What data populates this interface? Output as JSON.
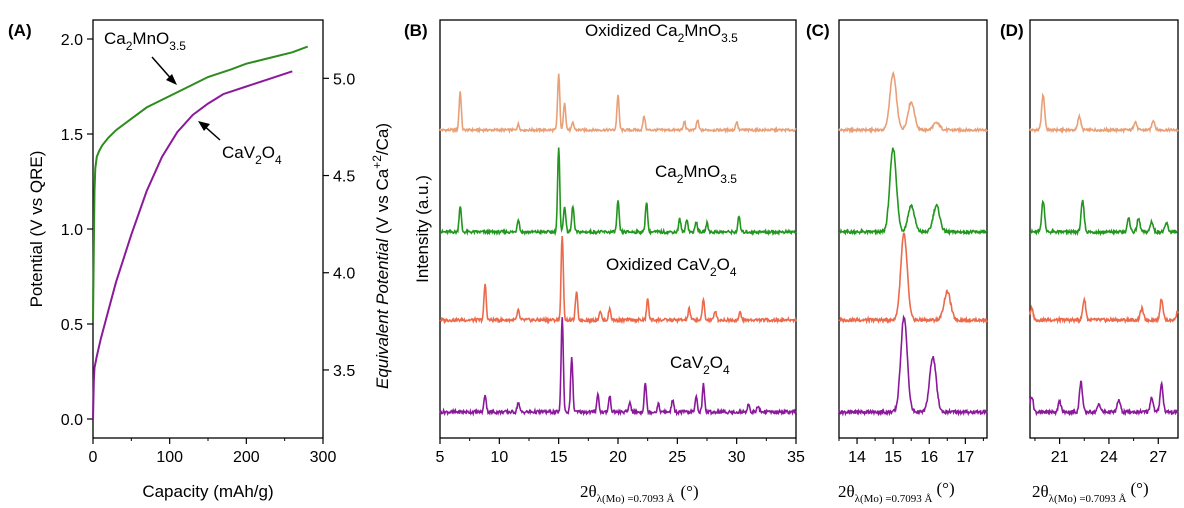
{
  "colors": {
    "green": "#2e8b1e",
    "purple": "#8b1a9b",
    "oxidized_mn": "#e8a078",
    "mn": "#22961e",
    "oxidized_v": "#ec6a4c",
    "v": "#8b1a9b",
    "axis": "#000000"
  },
  "panels": {
    "A": "(A)",
    "B": "(B)",
    "C": "(C)",
    "D": "(D)"
  },
  "chart_data": [
    {
      "id": "A",
      "type": "line",
      "title": "",
      "xlabel": "Capacity (mAh/g)",
      "ylabel": "Potential (V vs QRE)",
      "ylabel_right": [
        "Equivalent Potential",
        " (V vs Ca",
        "+2",
        "/Ca)"
      ],
      "xlim": [
        0,
        300
      ],
      "ylim": [
        -0.1,
        2.1
      ],
      "ylim_right": [
        3.15,
        5.3
      ],
      "xticks": [
        "0",
        "100",
        "200",
        "300"
      ],
      "yticks": [
        "0.0",
        "0.5",
        "1.0",
        "1.5",
        "2.0"
      ],
      "yticks_right": [
        "3.5",
        "4.0",
        "4.5",
        "5.0"
      ],
      "grid": false,
      "series": [
        {
          "name": "Ca2MnO3.5",
          "color": "#2e8b1e",
          "x": [
            0,
            1,
            2,
            3,
            5,
            8,
            12,
            20,
            30,
            50,
            70,
            100,
            130,
            150,
            180,
            200,
            230,
            260,
            280
          ],
          "y": [
            0.51,
            0.9,
            1.2,
            1.32,
            1.38,
            1.41,
            1.44,
            1.48,
            1.52,
            1.58,
            1.64,
            1.7,
            1.76,
            1.8,
            1.84,
            1.87,
            1.9,
            1.93,
            1.96
          ]
        },
        {
          "name": "CaV2O4",
          "color": "#8b1a9b",
          "x": [
            0,
            1,
            2,
            5,
            10,
            20,
            30,
            50,
            70,
            90,
            110,
            130,
            150,
            170,
            200,
            230,
            260
          ],
          "y": [
            0.0,
            0.2,
            0.27,
            0.33,
            0.42,
            0.57,
            0.72,
            0.97,
            1.2,
            1.38,
            1.51,
            1.6,
            1.66,
            1.71,
            1.75,
            1.79,
            1.83
          ]
        }
      ],
      "annotations": [
        {
          "base": "Ca",
          "sub1": "2",
          "mid": "MnO",
          "sub2": "3.5",
          "target": "Ca2MnO3.5"
        },
        {
          "base": "CaV",
          "sub1": "2",
          "mid": "O",
          "sub2": "4",
          "target": "CaV2O4"
        }
      ]
    },
    {
      "id": "B",
      "type": "line",
      "title": "",
      "xlabel_main": "2θ",
      "xlabel_sub": "λ(Mo) =0.7093 Å",
      "xlabel_unit": "(°)",
      "ylabel": "Intensity (a.u.)",
      "xlim": [
        5,
        35
      ],
      "xticks": [
        "5",
        "10",
        "15",
        "20",
        "25",
        "30",
        "35"
      ],
      "grid": false,
      "series": [
        {
          "name": "Oxidized Ca2MnO3.5",
          "label": {
            "base": "Oxidized Ca",
            "sub1": "2",
            "mid": "MnO",
            "sub2": "3.5"
          },
          "color": "#e8a078",
          "offset": 3,
          "peaks": [
            [
              6.7,
              0.55
            ],
            [
              11.6,
              0.08
            ],
            [
              15.0,
              0.8
            ],
            [
              15.5,
              0.4
            ],
            [
              16.2,
              0.1
            ],
            [
              20.0,
              0.5
            ],
            [
              22.2,
              0.2
            ],
            [
              25.6,
              0.12
            ],
            [
              26.7,
              0.14
            ],
            [
              30.0,
              0.12
            ]
          ]
        },
        {
          "name": "Ca2MnO3.5",
          "label": {
            "base": "Ca",
            "sub1": "2",
            "mid": "MnO",
            "sub2": "3.5"
          },
          "color": "#22961e",
          "offset": 2,
          "peaks": [
            [
              6.7,
              0.3
            ],
            [
              11.6,
              0.15
            ],
            [
              15.0,
              0.95
            ],
            [
              15.5,
              0.3
            ],
            [
              16.2,
              0.3
            ],
            [
              20.0,
              0.35
            ],
            [
              22.4,
              0.35
            ],
            [
              25.2,
              0.15
            ],
            [
              25.8,
              0.15
            ],
            [
              26.6,
              0.12
            ],
            [
              27.5,
              0.1
            ],
            [
              30.2,
              0.18
            ]
          ]
        },
        {
          "name": "Oxidized CaV2O4",
          "label": {
            "base": "Oxidized CaV",
            "sub1": "2",
            "mid": "O",
            "sub2": "4"
          },
          "color": "#ec6a4c",
          "offset": 1,
          "peaks": [
            [
              8.8,
              0.38
            ],
            [
              11.6,
              0.1
            ],
            [
              15.3,
              0.9
            ],
            [
              16.5,
              0.3
            ],
            [
              18.5,
              0.1
            ],
            [
              19.3,
              0.12
            ],
            [
              22.5,
              0.22
            ],
            [
              26.0,
              0.12
            ],
            [
              27.2,
              0.22
            ],
            [
              28.2,
              0.1
            ],
            [
              30.3,
              0.08
            ]
          ]
        },
        {
          "name": "CaV2O4",
          "label": {
            "base": "CaV",
            "sub1": "2",
            "mid": "O",
            "sub2": "4"
          },
          "color": "#8b1a9b",
          "offset": 0,
          "peaks": [
            [
              8.8,
              0.18
            ],
            [
              11.6,
              0.1
            ],
            [
              15.3,
              0.95
            ],
            [
              16.1,
              0.55
            ],
            [
              18.3,
              0.18
            ],
            [
              19.3,
              0.16
            ],
            [
              21.0,
              0.1
            ],
            [
              22.3,
              0.3
            ],
            [
              23.4,
              0.08
            ],
            [
              24.6,
              0.12
            ],
            [
              26.6,
              0.15
            ],
            [
              27.2,
              0.28
            ],
            [
              31.0,
              0.08
            ],
            [
              31.8,
              0.06
            ]
          ]
        }
      ]
    },
    {
      "id": "C",
      "type": "line",
      "title": "",
      "xlabel_main": "2θ",
      "xlabel_sub": "λ(Mo) =0.7093 Å",
      "xlabel_unit": "(°)",
      "xlim": [
        13.5,
        17.6
      ],
      "xticks": [
        "14",
        "15",
        "16",
        "17"
      ]
    },
    {
      "id": "D",
      "type": "line",
      "title": "",
      "xlabel_main": "2θ",
      "xlabel_sub": "λ(Mo) =0.7093 Å",
      "xlabel_unit": "(°)",
      "xlim": [
        19.2,
        28.2
      ],
      "xticks": [
        "21",
        "24",
        "27"
      ]
    }
  ]
}
